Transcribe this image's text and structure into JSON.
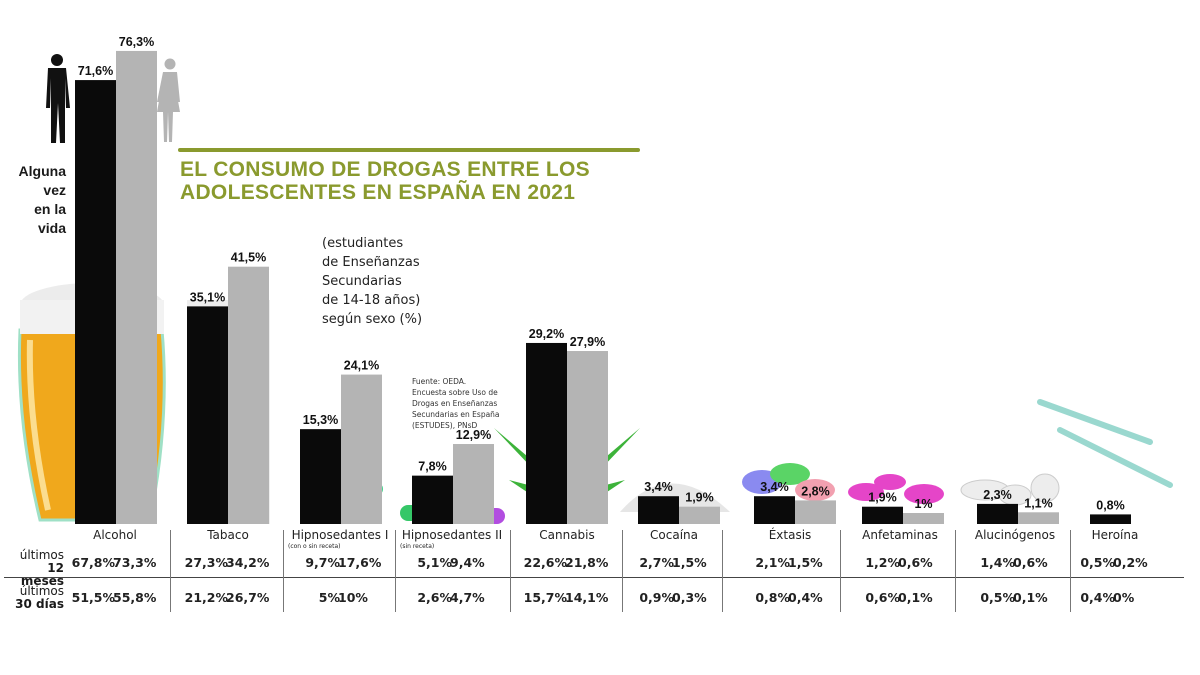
{
  "chart_data": {
    "type": "bar",
    "title": "EL CONSUMO DE DROGAS ENTRE LOS ADOLESCENTES EN ESPAÑA EN 2021",
    "subtitle": "(estudiantes\nde Enseñanzas\nSecundarias\nde 14-18 años)\nsegún sexo (%)",
    "source": "Fuente: OEDA.\nEncuesta sobre Uso de\nDrogas en Enseñanzas\nSecundarias en España\n(ESTUDES), PNsD",
    "bar_label": "Alguna\nvez\nen la\nvida",
    "series_colors": {
      "male": "#0a0a0a",
      "female": "#b4b4b4"
    },
    "title_color": "#8a9a2e",
    "categories": [
      "Alcohol",
      "Tabaco",
      "Hipnosedantes I",
      "Hipnosedantes II",
      "Cannabis",
      "Cocaína",
      "Éxtasis",
      "Anfetaminas",
      "Alucinógenos",
      "Heroína"
    ],
    "category_notes": [
      "",
      "",
      "(con o sin receta)",
      "(sin receta)",
      "",
      "",
      "",
      "",
      "",
      ""
    ],
    "series": [
      {
        "values": [
          71.6,
          35.1,
          15.3,
          7.8,
          29.2,
          3.4,
          3.4,
          1.9,
          2.3,
          0.8
        ],
        "labels": [
          "71,6%",
          "35,1%",
          "15,3%",
          "7,8%",
          "29,2%",
          "3,4%",
          "3,4%",
          "1,9%",
          "2,3%",
          "0,8%"
        ]
      },
      {
        "values": [
          76.3,
          41.5,
          24.1,
          12.9,
          27.9,
          1.9,
          2.8,
          1,
          1.1,
          null
        ],
        "labels": [
          "76,3%",
          "41,5%",
          "24,1%",
          "12,9%",
          "27,9%",
          "1,9%",
          "2,8%",
          "1%",
          "1,1%",
          ""
        ]
      }
    ],
    "table": {
      "rows": [
        {
          "label_top": "últimos",
          "label_bottom": "12 meses",
          "values": [
            [
              "67,8%",
              "73,3%"
            ],
            [
              "27,3%",
              "34,2%"
            ],
            [
              "9,7%",
              "17,6%"
            ],
            [
              "5,1%",
              "9,4%"
            ],
            [
              "22,6%",
              "21,8%"
            ],
            [
              "2,7%",
              "1,5%"
            ],
            [
              "2,1%",
              "1,5%"
            ],
            [
              "1,2%",
              "0,6%"
            ],
            [
              "1,4%",
              "0,6%"
            ],
            [
              "0,5%",
              "0,2%"
            ]
          ]
        },
        {
          "label_top": "últimos",
          "label_bottom": "30 días",
          "values": [
            [
              "51,5%",
              "55,8%"
            ],
            [
              "21,2%",
              "26,7%"
            ],
            [
              "5%",
              "10%"
            ],
            [
              "2,6%",
              "4,7%"
            ],
            [
              "15,7%",
              "14,1%"
            ],
            [
              "0,9%",
              "0,3%"
            ],
            [
              "0,8%",
              "0,4%"
            ],
            [
              "0,6%",
              "0,1%"
            ],
            [
              "0,5%",
              "0,1%"
            ],
            [
              "0,4%",
              "0%"
            ]
          ]
        }
      ]
    },
    "icons": [
      "man-silhouette-icon",
      "woman-silhouette-icon",
      "beer-glass-icon",
      "cigarette-icon",
      "pills-icon",
      "capsules-icon",
      "cannabis-leaf-icon",
      "cocaine-powder-icon",
      "ecstasy-pills-icon",
      "amphetamine-pills-icon",
      "hallucinogen-tablets-icon",
      "syringe-icon"
    ]
  }
}
